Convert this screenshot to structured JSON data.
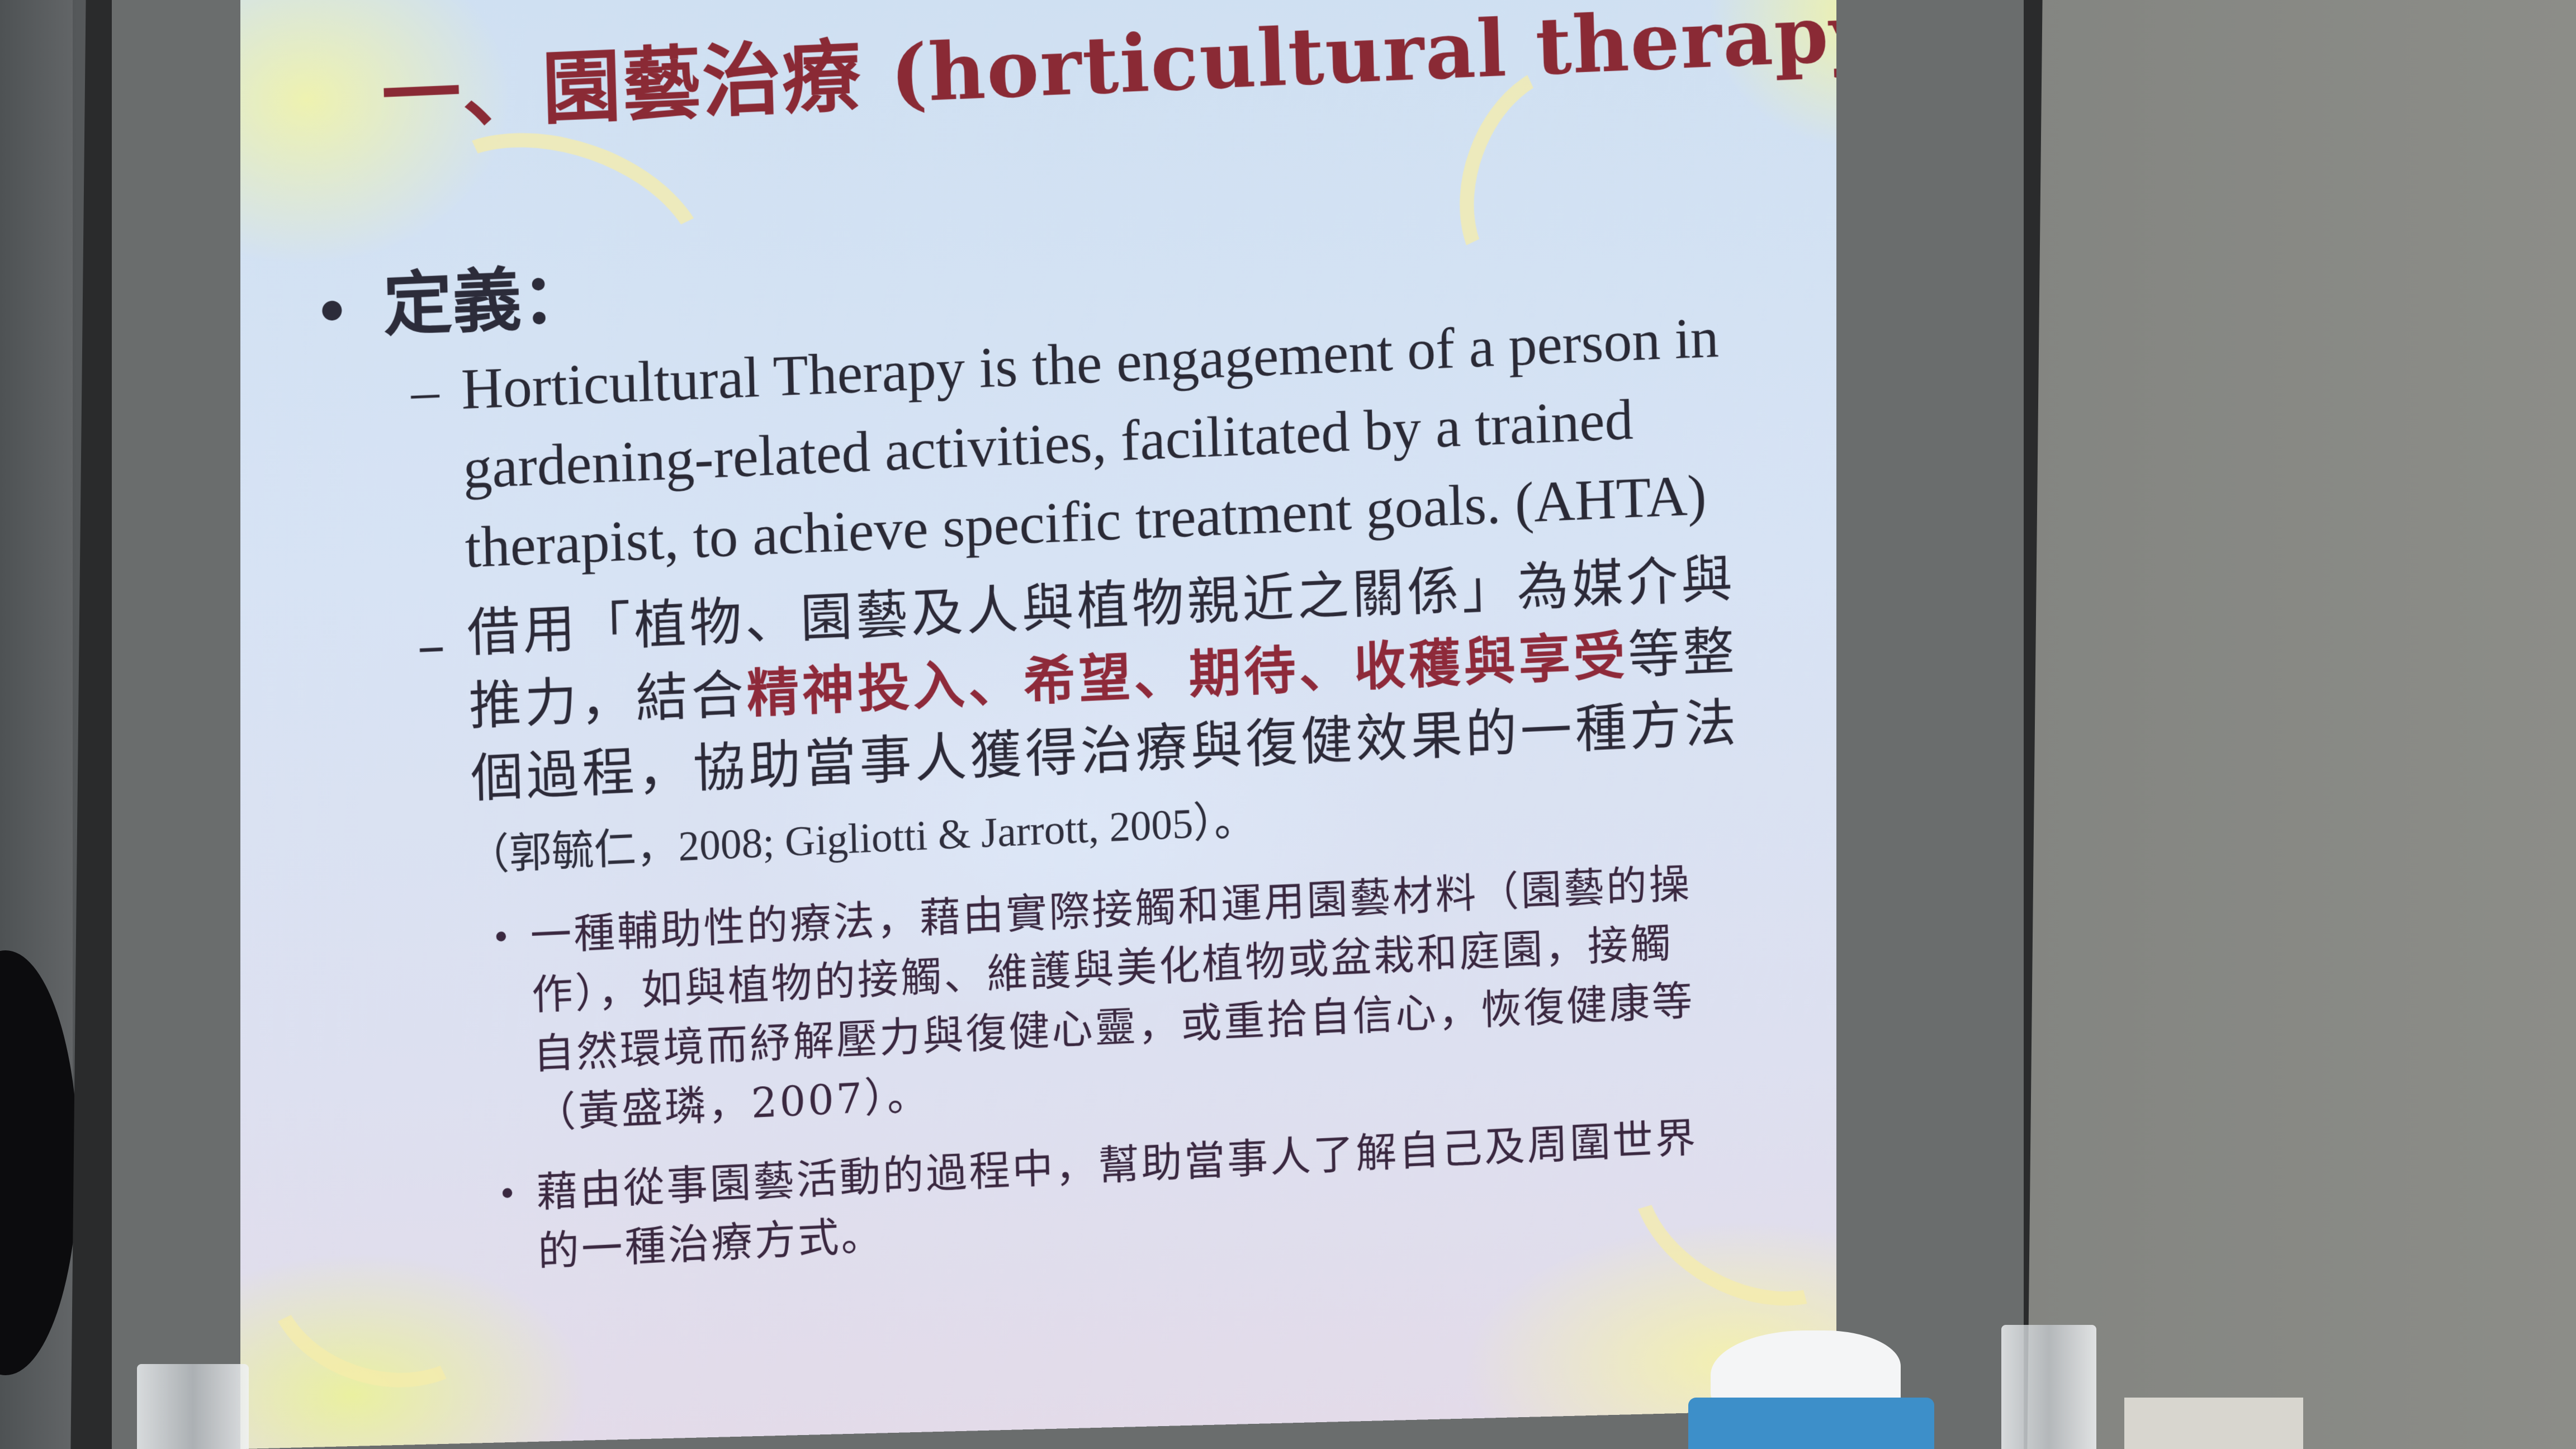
{
  "slide": {
    "title": "一、園藝治療 (horticultural therapy)概論",
    "definition_heading": "定義：",
    "bullet_symbol": "•",
    "dash_symbol": "–",
    "english_definition": {
      "lines": [
        "Horticultural Therapy is the engagement of a person in",
        "gardening-related activities, facilitated by a trained",
        "therapist, to achieve specific treatment goals.  (AHTA)"
      ]
    },
    "chinese_definition": {
      "line1": "借用「植物、園藝及人與植物親近之關係」為媒介與",
      "line2_prefix": "推力，結合",
      "line2_emphasis": "精神投入、希望、期待、收穫與享受",
      "line2_suffix": "等整",
      "line3": "個過程，協助當事人獲得治療與復健效果的一種方法"
    },
    "citation": "（郭毓仁，2008; Gigliotti & Jarrott, 2005）。",
    "sub_points": [
      {
        "lines": [
          "一種輔助性的療法，藉由實際接觸和運用園藝材料（園藝的操",
          "作），如與植物的接觸、維護與美化植物或盆栽和庭園，接觸",
          "自然環境而紓解壓力與復健心靈，或重拾自信心，恢復健康等",
          "（黃盛璘，2007）。"
        ]
      },
      {
        "lines": [
          "藉由從事園藝活動的過程中，幫助當事人了解自己及周圍世界",
          "的一種治療方式。"
        ]
      }
    ]
  },
  "colors": {
    "title": "#8a2a35",
    "emphasis": "#8e2a3a",
    "body_text": "#2c2c3a"
  }
}
